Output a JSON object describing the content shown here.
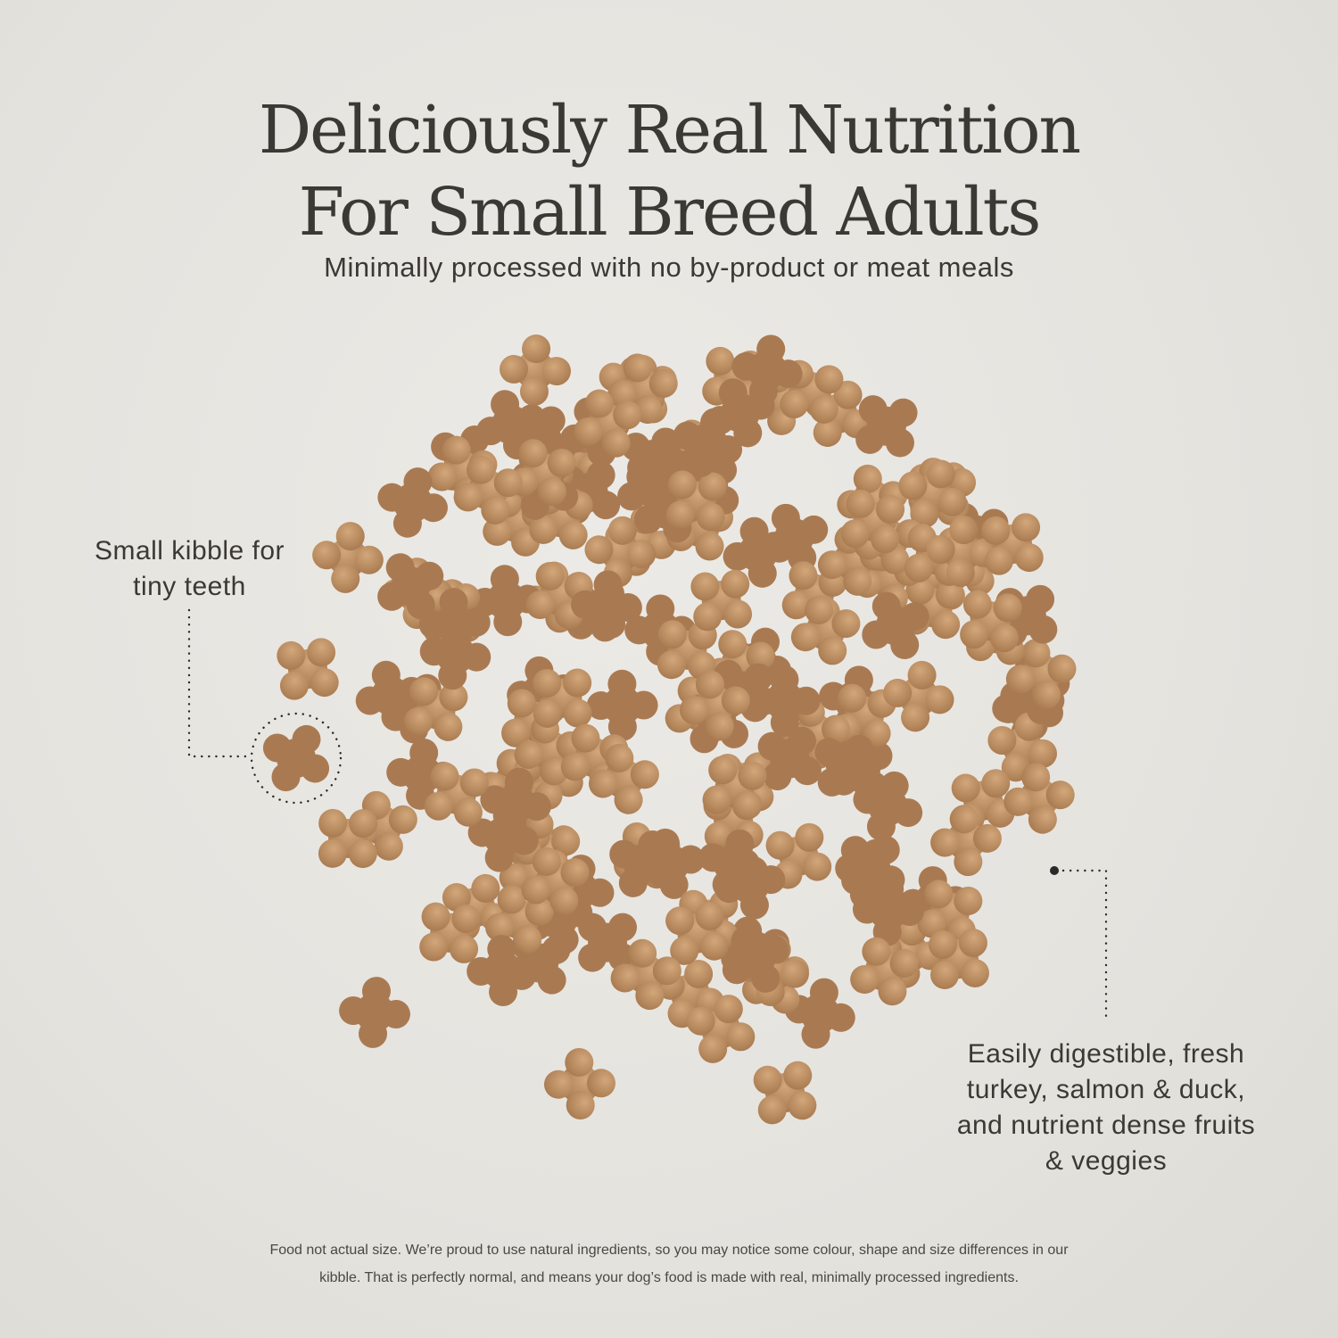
{
  "header": {
    "title_line1": "Deliciously Real Nutrition",
    "title_line2": "For Small Breed Adults",
    "subtitle": "Minimally processed with no by-product or meat meals"
  },
  "callouts": {
    "kibble_size": {
      "line1": "Small kibble for",
      "line2": "tiny teeth"
    },
    "ingredients": {
      "line1": "Easily digestible, fresh",
      "line2": "turkey, salmon & duck,",
      "line3": "and nutrient dense fruits",
      "line4": "& veggies"
    }
  },
  "footnote": {
    "line1": "Food not actual size. We’re proud to use natural ingredients, so you may notice some colour, shape and size differences in our",
    "line2": "kibble. That is perfectly normal, and means your dog’s food is made with real, minimally processed ingredients."
  },
  "colors": {
    "background": "#e6e4df",
    "text": "#3b3934",
    "kibble_light": "#c79a6c",
    "kibble_dark": "#a8794f",
    "dots": "#2a2a2a"
  }
}
